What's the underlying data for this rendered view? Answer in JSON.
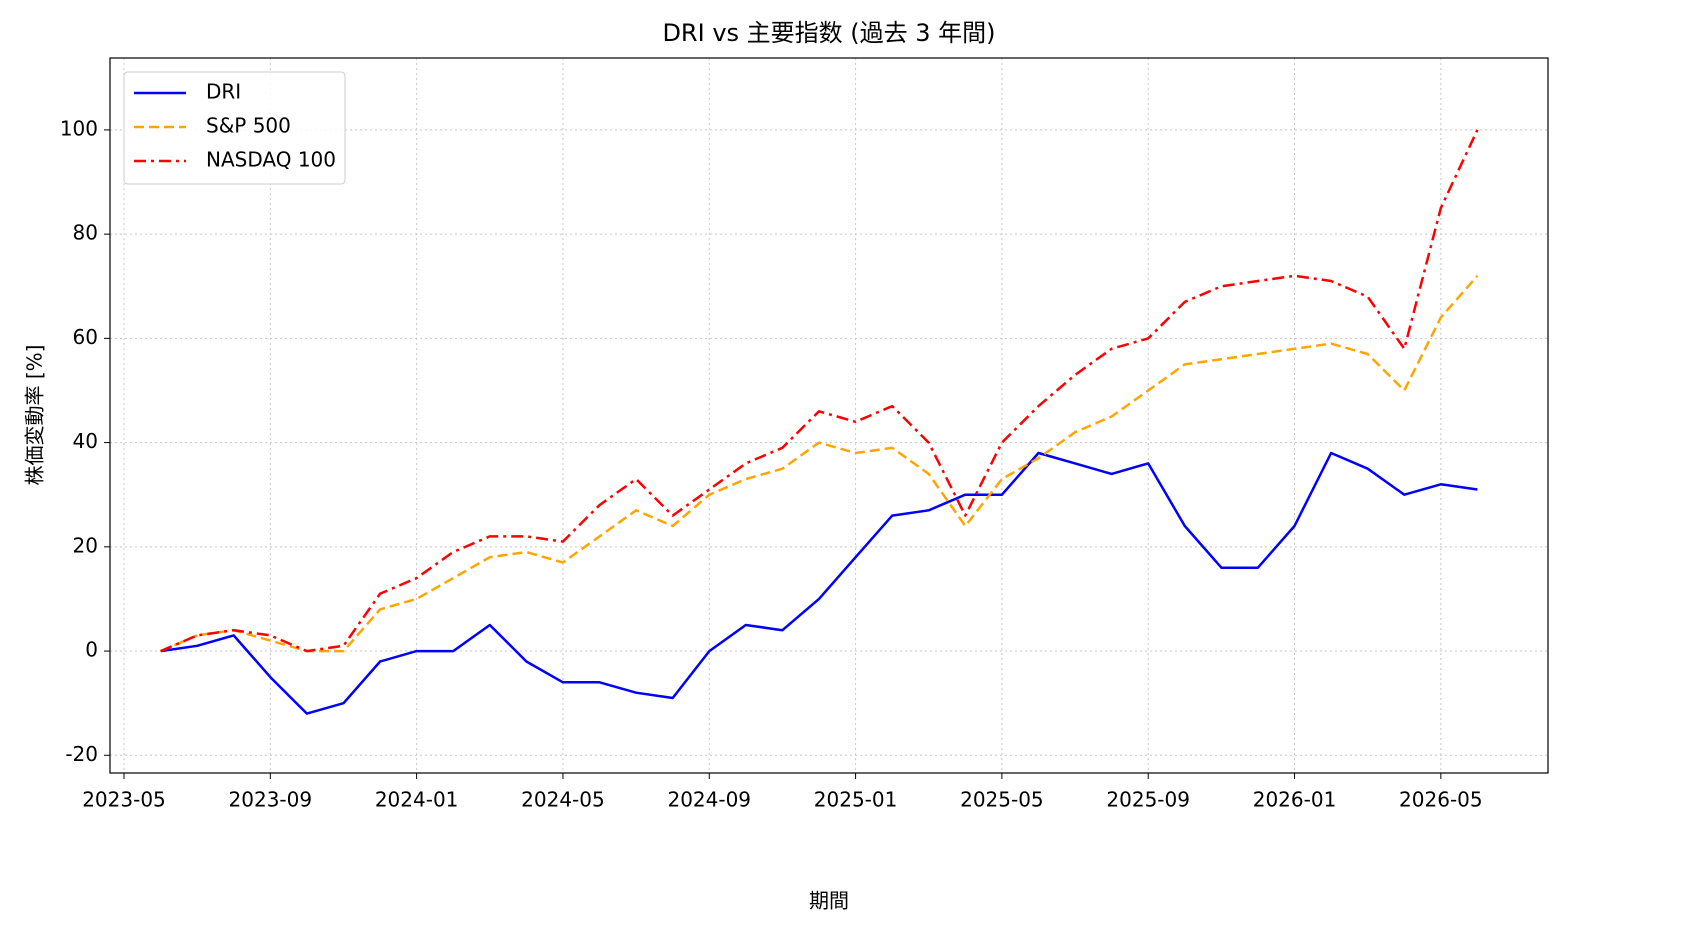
{
  "chart_data": {
    "type": "line",
    "title": "DRI vs 主要指数 (過去 3 年間)",
    "x_label": "期間",
    "y_label": "株価変動率 [%]",
    "x": [
      "2023-06",
      "2023-07",
      "2023-08",
      "2023-09",
      "2023-10",
      "2023-11",
      "2023-12",
      "2024-01",
      "2024-02",
      "2024-03",
      "2024-04",
      "2024-05",
      "2024-06",
      "2024-07",
      "2024-08",
      "2024-09",
      "2024-10",
      "2024-11",
      "2024-12",
      "2025-01",
      "2025-02",
      "2025-03",
      "2025-04",
      "2025-05",
      "2025-06",
      "2025-07",
      "2025-08",
      "2025-09",
      "2025-10",
      "2025-11",
      "2025-12",
      "2026-01",
      "2026-02",
      "2026-03",
      "2026-04",
      "2026-05",
      "2026-06"
    ],
    "series": [
      {
        "name": "DRI",
        "color": "#0000ff",
        "dash": "solid",
        "values": [
          0,
          1,
          3,
          -5,
          -12,
          -10,
          -2,
          0,
          0,
          5,
          -2,
          -6,
          -6,
          -8,
          -9,
          0,
          5,
          4,
          10,
          18,
          26,
          27,
          30,
          30,
          38,
          36,
          34,
          36,
          24,
          16,
          16,
          24,
          38,
          35,
          30,
          32,
          31
        ]
      },
      {
        "name": "S&P 500",
        "color": "#ffa500",
        "dash": "dashed",
        "values": [
          0,
          3,
          4,
          2,
          0,
          0,
          8,
          10,
          14,
          18,
          19,
          17,
          22,
          27,
          24,
          30,
          33,
          35,
          40,
          38,
          39,
          34,
          24,
          33,
          37,
          42,
          45,
          50,
          55,
          56,
          57,
          58,
          59,
          57,
          50,
          64,
          72
        ]
      },
      {
        "name": "NASDAQ 100",
        "color": "#ff0000",
        "dash": "dashdot",
        "values": [
          0,
          3,
          4,
          3,
          0,
          1,
          11,
          14,
          19,
          22,
          22,
          21,
          28,
          33,
          26,
          31,
          36,
          39,
          46,
          44,
          47,
          40,
          26,
          40,
          47,
          53,
          58,
          60,
          67,
          70,
          71,
          72,
          71,
          68,
          58,
          85,
          100
        ]
      }
    ],
    "xlim": [
      "2023-05",
      "2026-07"
    ],
    "xticks": [
      "2023-05",
      "2023-09",
      "2024-01",
      "2024-05",
      "2024-09",
      "2025-01",
      "2025-05",
      "2025-09",
      "2026-01",
      "2026-05"
    ],
    "ylim": [
      -23.4,
      113.8
    ],
    "yticks": [
      -20,
      0,
      20,
      40,
      60,
      80,
      100
    ],
    "grid": true,
    "legend": "upper-left"
  }
}
